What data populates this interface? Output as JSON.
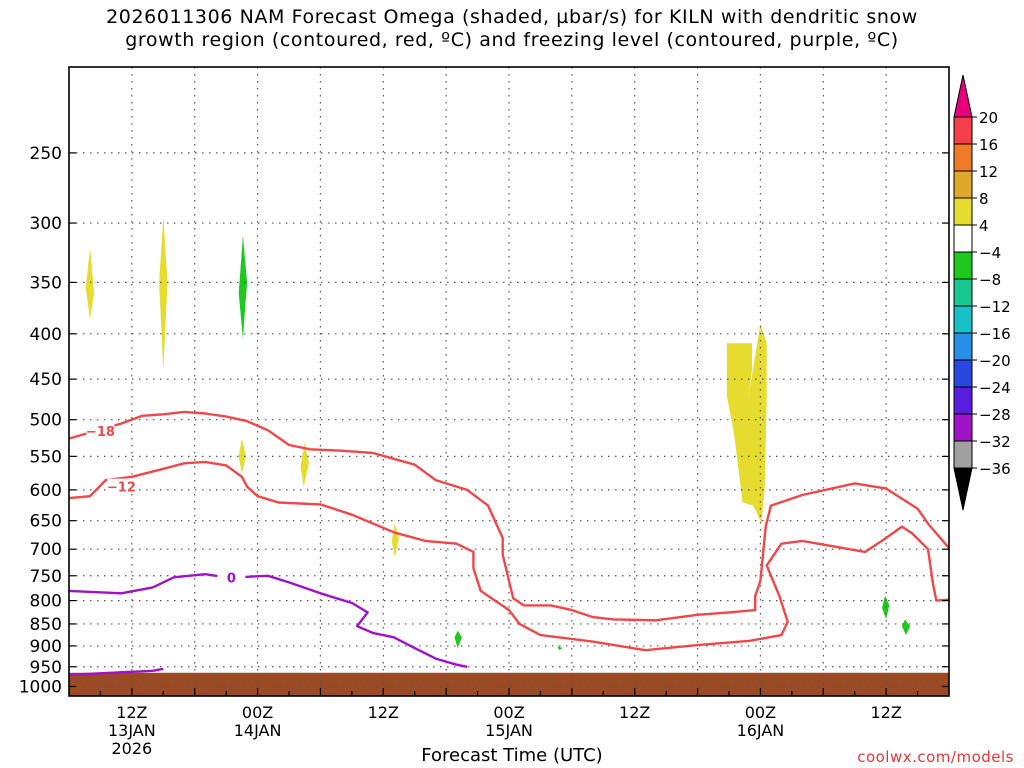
{
  "title_line1": "2026011306 NAM Forecast Omega (shaded, µbar/s) for KILN with dendritic snow",
  "title_line2": "growth region (contoured, red, ºC) and freezing level (contoured, purple, ºC)",
  "watermark": "coolwx.com/models",
  "chart_data": {
    "type": "contour",
    "xlabel": "Forecast Time (UTC)",
    "ylabel": "",
    "x_unit": "hours since 2026-01-13 06Z",
    "xlim": [
      0,
      84
    ],
    "y_scale": "log-pressure",
    "ylim": [
      1025,
      200
    ],
    "yticks": [
      250,
      300,
      350,
      400,
      450,
      500,
      550,
      600,
      650,
      700,
      750,
      800,
      850,
      900,
      950,
      1000
    ],
    "xticks": [
      {
        "hour": 6,
        "label": "12Z",
        "sub1": "13JAN",
        "sub2": "2026"
      },
      {
        "hour": 18,
        "label": "00Z",
        "sub1": "14JAN",
        "sub2": ""
      },
      {
        "hour": 30,
        "label": "12Z",
        "sub1": "",
        "sub2": ""
      },
      {
        "hour": 42,
        "label": "00Z",
        "sub1": "15JAN",
        "sub2": ""
      },
      {
        "hour": 54,
        "label": "12Z",
        "sub1": "",
        "sub2": ""
      },
      {
        "hour": 66,
        "label": "00Z",
        "sub1": "16JAN",
        "sub2": ""
      },
      {
        "hour": 78,
        "label": "12Z",
        "sub1": "",
        "sub2": ""
      }
    ],
    "grid": true,
    "colorbar": {
      "labels": [
        "20",
        "16",
        "12",
        "8",
        "4",
        "−4",
        "−8",
        "−12",
        "−16",
        "−20",
        "−24",
        "−28",
        "−32",
        "−36"
      ],
      "colors": [
        "#f5404a",
        "#ef7a28",
        "#e0a82a",
        "#e6dc2e",
        "#ffffff",
        "#1ec81e",
        "#18c890",
        "#18c0c8",
        "#2890e8",
        "#2848e0",
        "#5a1ee0",
        "#a014c8",
        "#a0a0a0"
      ],
      "top_arrow_color": "#e8007a",
      "bottom_arrow_color": "#000000"
    },
    "omega_shaded": [
      {
        "value_range": "4 to 8",
        "color": "#e6dc2e",
        "points": [
          [
            2.0,
            320
          ],
          [
            2.4,
            360
          ],
          [
            2.0,
            385
          ],
          [
            1.6,
            355
          ]
        ]
      },
      {
        "value_range": "4 to 8",
        "color": "#e6dc2e",
        "points": [
          [
            9.0,
            295
          ],
          [
            9.4,
            350
          ],
          [
            9.0,
            440
          ],
          [
            8.6,
            350
          ]
        ]
      },
      {
        "value_range": "4 to 8",
        "color": "#e6dc2e",
        "points": [
          [
            16.5,
            525
          ],
          [
            16.9,
            550
          ],
          [
            16.5,
            575
          ],
          [
            16.2,
            550
          ]
        ]
      },
      {
        "value_range": "4 to 8",
        "color": "#e6dc2e",
        "points": [
          [
            22.5,
            530
          ],
          [
            22.9,
            560
          ],
          [
            22.4,
            595
          ],
          [
            22.1,
            565
          ]
        ]
      },
      {
        "value_range": "4 to 8",
        "color": "#e6dc2e",
        "points": [
          [
            31.1,
            655
          ],
          [
            31.5,
            680
          ],
          [
            31.1,
            715
          ],
          [
            30.8,
            685
          ]
        ]
      },
      {
        "value_range": "4 to 8",
        "color": "#e6dc2e",
        "points": [
          [
            62.8,
            410
          ],
          [
            65.2,
            410
          ],
          [
            65.2,
            440
          ],
          [
            64.8,
            475
          ],
          [
            66.0,
            390
          ],
          [
            66.6,
            410
          ],
          [
            66.6,
            475
          ],
          [
            66.4,
            600
          ],
          [
            66.1,
            655
          ],
          [
            65.6,
            635
          ],
          [
            65.3,
            625
          ],
          [
            64.3,
            620
          ],
          [
            63.5,
            520
          ],
          [
            62.8,
            470
          ]
        ]
      },
      {
        "value_range": "−4 to −8",
        "color": "#1ec81e",
        "points": [
          [
            16.6,
            310
          ],
          [
            17.0,
            350
          ],
          [
            16.6,
            405
          ],
          [
            16.2,
            360
          ]
        ]
      },
      {
        "value_range": "−4 to −8",
        "color": "#1ec81e",
        "points": [
          [
            37.1,
            865
          ],
          [
            37.5,
            880
          ],
          [
            37.1,
            905
          ],
          [
            36.8,
            880
          ]
        ]
      },
      {
        "value_range": "−4 to −8",
        "color": "#1ec81e",
        "points": [
          [
            77.9,
            790
          ],
          [
            78.3,
            810
          ],
          [
            78.0,
            840
          ],
          [
            77.6,
            815
          ]
        ]
      },
      {
        "value_range": "−4 to −8",
        "color": "#1ec81e",
        "points": [
          [
            79.8,
            840
          ],
          [
            80.3,
            855
          ],
          [
            79.9,
            875
          ],
          [
            79.5,
            855
          ]
        ]
      },
      {
        "value_range": "−4 to −8",
        "color": "#1ec81e",
        "points": [
          [
            46.6,
            900
          ],
          [
            47.1,
            905
          ],
          [
            46.8,
            910
          ]
        ]
      }
    ],
    "dgz_contours": [
      {
        "label": "−18",
        "color": "#f0484a",
        "label_at": [
          3.0,
          515
        ],
        "points": [
          [
            0,
            525
          ],
          [
            3,
            513
          ],
          [
            5,
            505
          ],
          [
            7,
            495
          ],
          [
            9,
            493
          ],
          [
            11,
            490
          ],
          [
            13,
            492
          ],
          [
            15,
            496
          ],
          [
            17,
            502
          ],
          [
            19,
            514
          ],
          [
            21,
            534
          ],
          [
            23,
            540
          ],
          [
            26,
            542
          ],
          [
            29,
            545
          ],
          [
            33,
            562
          ],
          [
            35,
            585
          ],
          [
            38,
            600
          ],
          [
            40,
            625
          ],
          [
            41.4,
            680
          ],
          [
            41.4,
            710
          ],
          [
            42,
            760
          ],
          [
            42.4,
            795
          ],
          [
            43.4,
            810
          ],
          [
            46,
            810
          ],
          [
            48,
            820
          ],
          [
            50,
            835
          ],
          [
            52,
            840
          ],
          [
            56,
            842
          ],
          [
            60,
            830
          ],
          [
            63,
            825
          ],
          [
            65.5,
            820
          ],
          [
            65.5,
            790
          ],
          [
            66,
            760
          ],
          [
            66.5,
            660
          ],
          [
            67,
            625
          ],
          [
            70,
            608
          ],
          [
            75,
            590
          ],
          [
            78,
            598
          ],
          [
            81,
            630
          ],
          [
            82,
            655
          ],
          [
            84,
            698
          ]
        ]
      },
      {
        "label": "−12",
        "color": "#f0484a",
        "label_at": [
          5.0,
          595
        ],
        "points": [
          [
            0,
            613
          ],
          [
            2,
            610
          ],
          [
            3.5,
            585
          ],
          [
            6,
            580
          ],
          [
            9,
            568
          ],
          [
            11,
            560
          ],
          [
            13,
            558
          ],
          [
            15,
            563
          ],
          [
            16.5,
            580
          ],
          [
            17,
            595
          ],
          [
            18,
            610
          ],
          [
            20,
            620
          ],
          [
            24,
            623
          ],
          [
            27,
            640
          ],
          [
            31,
            670
          ],
          [
            34,
            685
          ],
          [
            37,
            690
          ],
          [
            38.6,
            705
          ],
          [
            38.6,
            735
          ],
          [
            39.3,
            780
          ],
          [
            41,
            805
          ],
          [
            42,
            820
          ],
          [
            43,
            850
          ],
          [
            45,
            875
          ],
          [
            50,
            890
          ],
          [
            55,
            910
          ],
          [
            60,
            898
          ],
          [
            65,
            888
          ],
          [
            68,
            875
          ],
          [
            68.6,
            845
          ],
          [
            67.8,
            790
          ],
          [
            66.6,
            730
          ],
          [
            68,
            690
          ],
          [
            70,
            685
          ],
          [
            73,
            695
          ],
          [
            76,
            705
          ],
          [
            78,
            680
          ],
          [
            79.5,
            660
          ],
          [
            80.5,
            672
          ],
          [
            82,
            700
          ],
          [
            82.5,
            770
          ],
          [
            82.8,
            800
          ],
          [
            84,
            798
          ]
        ]
      },
      {
        "label": "0",
        "color": "#a012c8",
        "label_at": [
          15.5,
          753
        ],
        "points": [
          [
            0,
            780
          ],
          [
            5,
            785
          ],
          [
            8,
            773
          ],
          [
            10,
            753
          ],
          [
            13,
            747
          ],
          [
            15,
            753
          ],
          [
            17,
            752
          ],
          [
            19,
            750
          ],
          [
            21,
            763
          ],
          [
            24,
            785
          ],
          [
            27,
            805
          ],
          [
            28.5,
            825
          ],
          [
            27.5,
            855
          ],
          [
            29,
            870
          ],
          [
            31,
            880
          ],
          [
            33,
            905
          ],
          [
            35,
            930
          ],
          [
            37,
            945
          ],
          [
            38,
            950
          ]
        ]
      },
      {
        "label": "",
        "color": "#a012c8",
        "points": [
          [
            0,
            970
          ],
          [
            4,
            965
          ],
          [
            8,
            960
          ],
          [
            9,
            955
          ]
        ]
      }
    ],
    "ground": {
      "color": "#9a4a24",
      "surface_pressure_hpa": 965
    }
  }
}
